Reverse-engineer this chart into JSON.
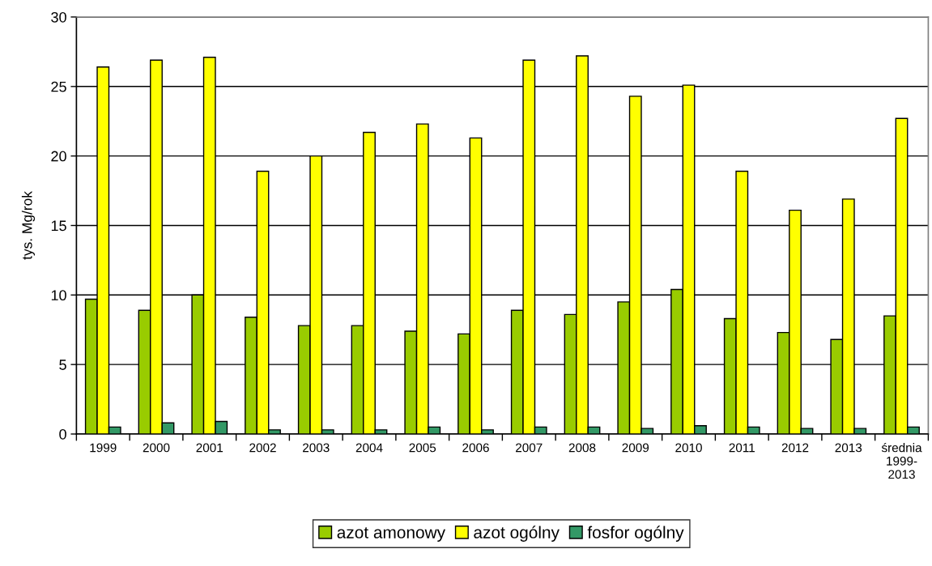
{
  "chart_data": {
    "type": "bar",
    "ylabel": "tys. Mg/rok",
    "categories": [
      "1999",
      "2000",
      "2001",
      "2002",
      "2003",
      "2004",
      "2005",
      "2006",
      "2007",
      "2008",
      "2009",
      "2010",
      "2011",
      "2012",
      "2013",
      "średnia\n1999-\n2013"
    ],
    "series": [
      {
        "name": "azot amonowy",
        "color": "#99cc00",
        "values": [
          9.7,
          8.9,
          10.0,
          8.4,
          7.8,
          7.8,
          7.4,
          7.2,
          8.9,
          8.6,
          9.5,
          10.4,
          8.3,
          7.3,
          6.8,
          8.5
        ]
      },
      {
        "name": "azot ogólny",
        "color": "#ffff00",
        "values": [
          26.4,
          26.9,
          27.1,
          18.9,
          20.0,
          21.7,
          22.3,
          21.3,
          26.9,
          27.2,
          24.3,
          25.1,
          18.9,
          16.1,
          16.9,
          22.7
        ]
      },
      {
        "name": "fosfor ogólny",
        "color": "#339966",
        "values": [
          0.5,
          0.8,
          0.9,
          0.3,
          0.3,
          0.3,
          0.5,
          0.3,
          0.5,
          0.5,
          0.4,
          0.6,
          0.5,
          0.4,
          0.4,
          0.5
        ]
      }
    ],
    "ylim": [
      0,
      30
    ],
    "yticks": [
      0,
      5,
      10,
      15,
      20,
      25,
      30
    ],
    "grid": "y",
    "legend": "bottom"
  }
}
